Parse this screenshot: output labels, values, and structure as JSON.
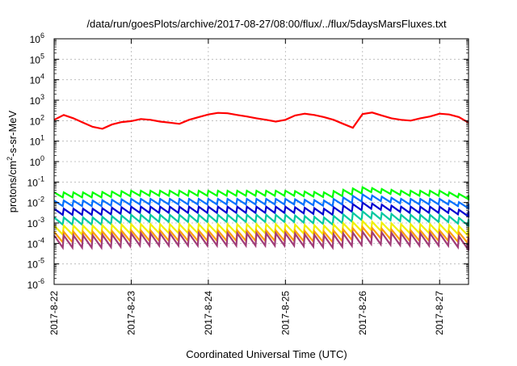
{
  "chart_data": {
    "type": "line",
    "title": "/data/run/goesPlots/archive/2017-08-27/08:00/flux/../flux/5daysMarsFluxes.txt",
    "xlabel": "Coordinated Universal Time (UTC)",
    "ylabel": {
      "base": "protons/cm",
      "sup": "2",
      "rest": "-s-sr-MeV"
    },
    "y_scale": "log",
    "ylim": [
      1e-06,
      1000000.0
    ],
    "y_ticks": [
      {
        "exp": "-6",
        "value": 1e-06
      },
      {
        "exp": "-5",
        "value": 1e-05
      },
      {
        "exp": "-4",
        "value": 0.0001
      },
      {
        "exp": "-3",
        "value": 0.001
      },
      {
        "exp": "-2",
        "value": 0.01
      },
      {
        "exp": "-1",
        "value": 0.1
      },
      {
        "exp": "0",
        "value": 1
      },
      {
        "exp": "1",
        "value": 10
      },
      {
        "exp": "2",
        "value": 100
      },
      {
        "exp": "3",
        "value": 1000
      },
      {
        "exp": "4",
        "value": 10000
      },
      {
        "exp": "5",
        "value": 100000
      },
      {
        "exp": "6",
        "value": 1000000
      }
    ],
    "xlim": [
      "2017-8-22",
      "2017-8-27 09:00"
    ],
    "x_ticks": [
      "2017-8-22",
      "2017-8-23",
      "2017-8-24",
      "2017-8-25",
      "2017-8-26",
      "2017-8-27"
    ],
    "grid": true,
    "series": [
      {
        "color": "#ff0000",
        "values": [
          [
            "2017-8-22 00:00",
            110
          ],
          [
            "2017-8-22 03:00",
            190
          ],
          [
            "2017-8-22 06:00",
            130
          ],
          [
            "2017-8-22 09:00",
            80
          ],
          [
            "2017-8-22 12:00",
            50
          ],
          [
            "2017-8-22 15:00",
            40
          ],
          [
            "2017-8-22 18:00",
            65
          ],
          [
            "2017-8-22 21:00",
            85
          ],
          [
            "2017-8-23 00:00",
            95
          ],
          [
            "2017-8-23 03:00",
            120
          ],
          [
            "2017-8-23 06:00",
            110
          ],
          [
            "2017-8-23 09:00",
            90
          ],
          [
            "2017-8-23 12:00",
            80
          ],
          [
            "2017-8-23 15:00",
            70
          ],
          [
            "2017-8-23 18:00",
            110
          ],
          [
            "2017-8-23 21:00",
            150
          ],
          [
            "2017-8-24 00:00",
            200
          ],
          [
            "2017-8-24 03:00",
            240
          ],
          [
            "2017-8-24 06:00",
            230
          ],
          [
            "2017-8-24 09:00",
            190
          ],
          [
            "2017-8-24 12:00",
            160
          ],
          [
            "2017-8-24 15:00",
            130
          ],
          [
            "2017-8-24 18:00",
            110
          ],
          [
            "2017-8-24 21:00",
            90
          ],
          [
            "2017-8-25 00:00",
            110
          ],
          [
            "2017-8-25 03:00",
            180
          ],
          [
            "2017-8-25 06:00",
            220
          ],
          [
            "2017-8-25 09:00",
            190
          ],
          [
            "2017-8-25 12:00",
            150
          ],
          [
            "2017-8-25 15:00",
            110
          ],
          [
            "2017-8-25 18:00",
            70
          ],
          [
            "2017-8-25 21:00",
            45
          ],
          [
            "2017-8-26 00:00",
            210
          ],
          [
            "2017-8-26 03:00",
            250
          ],
          [
            "2017-8-26 06:00",
            180
          ],
          [
            "2017-8-26 09:00",
            130
          ],
          [
            "2017-8-26 12:00",
            110
          ],
          [
            "2017-8-26 15:00",
            100
          ],
          [
            "2017-8-26 18:00",
            130
          ],
          [
            "2017-8-26 21:00",
            160
          ],
          [
            "2017-8-27 00:00",
            220
          ],
          [
            "2017-8-27 03:00",
            200
          ],
          [
            "2017-8-27 06:00",
            150
          ],
          [
            "2017-8-27 09:00",
            80
          ]
        ]
      },
      {
        "color": "#00ff00",
        "values": [
          [
            "2017-8-22 00:00",
            0.025
          ],
          [
            "2017-8-22 12:00",
            0.025
          ],
          [
            "2017-8-23 00:00",
            0.03
          ],
          [
            "2017-8-23 12:00",
            0.03
          ],
          [
            "2017-8-24 00:00",
            0.03
          ],
          [
            "2017-8-24 12:00",
            0.03
          ],
          [
            "2017-8-25 00:00",
            0.03
          ],
          [
            "2017-8-25 12:00",
            0.025
          ],
          [
            "2017-8-26 00:00",
            0.045
          ],
          [
            "2017-8-26 12:00",
            0.03
          ],
          [
            "2017-8-27 00:00",
            0.03
          ],
          [
            "2017-8-27 09:00",
            0.018
          ]
        ]
      },
      {
        "color": "#0070ff",
        "values": [
          [
            "2017-8-22 00:00",
            0.01
          ],
          [
            "2017-8-22 12:00",
            0.01
          ],
          [
            "2017-8-23 00:00",
            0.012
          ],
          [
            "2017-8-23 12:00",
            0.012
          ],
          [
            "2017-8-24 00:00",
            0.012
          ],
          [
            "2017-8-24 12:00",
            0.012
          ],
          [
            "2017-8-25 00:00",
            0.012
          ],
          [
            "2017-8-25 12:00",
            0.01
          ],
          [
            "2017-8-26 00:00",
            0.02
          ],
          [
            "2017-8-26 12:00",
            0.012
          ],
          [
            "2017-8-27 00:00",
            0.012
          ],
          [
            "2017-8-27 09:00",
            0.007
          ]
        ]
      },
      {
        "color": "#0000d0",
        "values": [
          [
            "2017-8-22 00:00",
            0.004
          ],
          [
            "2017-8-22 12:00",
            0.004
          ],
          [
            "2017-8-23 00:00",
            0.005
          ],
          [
            "2017-8-23 12:00",
            0.005
          ],
          [
            "2017-8-24 00:00",
            0.005
          ],
          [
            "2017-8-24 12:00",
            0.005
          ],
          [
            "2017-8-25 00:00",
            0.005
          ],
          [
            "2017-8-25 12:00",
            0.004
          ],
          [
            "2017-8-26 00:00",
            0.008
          ],
          [
            "2017-8-26 12:00",
            0.005
          ],
          [
            "2017-8-27 00:00",
            0.005
          ],
          [
            "2017-8-27 09:00",
            0.003
          ]
        ]
      },
      {
        "color": "#00c8a0",
        "values": [
          [
            "2017-8-22 00:00",
            0.0015
          ],
          [
            "2017-8-22 12:00",
            0.0015
          ],
          [
            "2017-8-23 00:00",
            0.002
          ],
          [
            "2017-8-23 12:00",
            0.002
          ],
          [
            "2017-8-24 00:00",
            0.002
          ],
          [
            "2017-8-24 12:00",
            0.002
          ],
          [
            "2017-8-25 00:00",
            0.002
          ],
          [
            "2017-8-25 12:00",
            0.0015
          ],
          [
            "2017-8-26 00:00",
            0.003
          ],
          [
            "2017-8-26 12:00",
            0.002
          ],
          [
            "2017-8-27 00:00",
            0.002
          ],
          [
            "2017-8-27 09:00",
            0.0012
          ]
        ]
      },
      {
        "color": "#f0f000",
        "values": [
          [
            "2017-8-22 00:00",
            0.0006
          ],
          [
            "2017-8-22 12:00",
            0.0006
          ],
          [
            "2017-8-23 00:00",
            0.0007
          ],
          [
            "2017-8-23 12:00",
            0.0007
          ],
          [
            "2017-8-24 00:00",
            0.0007
          ],
          [
            "2017-8-24 12:00",
            0.0007
          ],
          [
            "2017-8-25 00:00",
            0.0007
          ],
          [
            "2017-8-25 12:00",
            0.0006
          ],
          [
            "2017-8-26 00:00",
            0.001
          ],
          [
            "2017-8-26 12:00",
            0.0007
          ],
          [
            "2017-8-27 00:00",
            0.0007
          ],
          [
            "2017-8-27 09:00",
            0.0005
          ]
        ]
      },
      {
        "color": "#ffa000",
        "values": [
          [
            "2017-8-22 00:00",
            0.0003
          ],
          [
            "2017-8-22 12:00",
            0.0003
          ],
          [
            "2017-8-23 00:00",
            0.00035
          ],
          [
            "2017-8-23 12:00",
            0.00035
          ],
          [
            "2017-8-24 00:00",
            0.00035
          ],
          [
            "2017-8-24 12:00",
            0.00035
          ],
          [
            "2017-8-25 00:00",
            0.00035
          ],
          [
            "2017-8-25 12:00",
            0.0003
          ],
          [
            "2017-8-26 00:00",
            0.0005
          ],
          [
            "2017-8-26 12:00",
            0.00035
          ],
          [
            "2017-8-27 00:00",
            0.00035
          ],
          [
            "2017-8-27 09:00",
            0.00025
          ]
        ]
      },
      {
        "color": "#a03c78",
        "values": [
          [
            "2017-8-22 00:00",
            0.0002
          ],
          [
            "2017-8-22 12:00",
            0.0002
          ],
          [
            "2017-8-23 00:00",
            0.00025
          ],
          [
            "2017-8-23 12:00",
            0.00025
          ],
          [
            "2017-8-24 00:00",
            0.00025
          ],
          [
            "2017-8-24 12:00",
            0.00025
          ],
          [
            "2017-8-25 00:00",
            0.00025
          ],
          [
            "2017-8-25 12:00",
            0.0002
          ],
          [
            "2017-8-26 00:00",
            0.0003
          ],
          [
            "2017-8-26 12:00",
            0.00025
          ],
          [
            "2017-8-27 00:00",
            0.00025
          ],
          [
            "2017-8-27 09:00",
            0.00015
          ]
        ]
      }
    ]
  }
}
